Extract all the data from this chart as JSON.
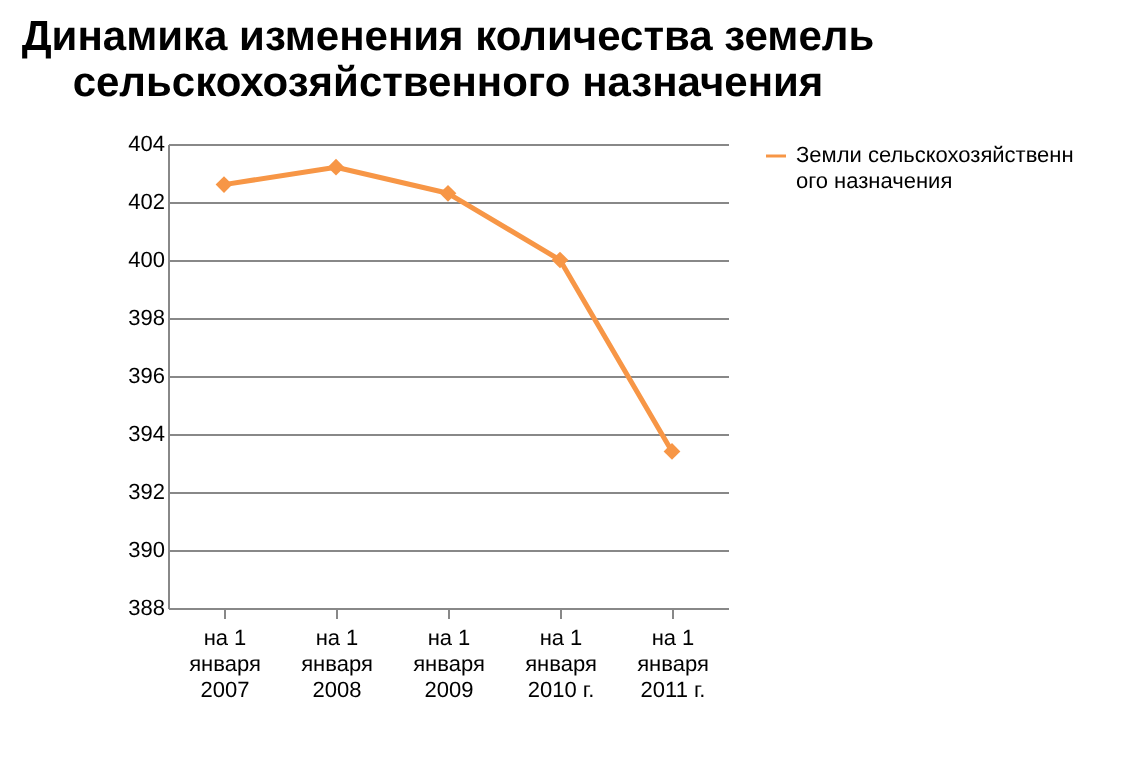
{
  "chart_data": {
    "type": "line",
    "title": "Динамика изменения количества земель сельскохозяйственного назначения",
    "categories": [
      "на 1 января 2007",
      "на 1 января 2008",
      "на 1 января 2009",
      "на 1 января 2010 г.",
      "на 1 января 2011 г."
    ],
    "series": [
      {
        "name": "Земли сельскохозяйственного назначения",
        "color": "#f79646",
        "values": [
          402.6,
          403.2,
          402.3,
          400.0,
          393.4
        ]
      }
    ],
    "ylim": [
      388,
      404
    ],
    "yticks": [
      388,
      390,
      392,
      394,
      396,
      398,
      400,
      402,
      404
    ],
    "grid": "y",
    "legend": "right",
    "marker": "diamond",
    "line_style": "solid"
  }
}
